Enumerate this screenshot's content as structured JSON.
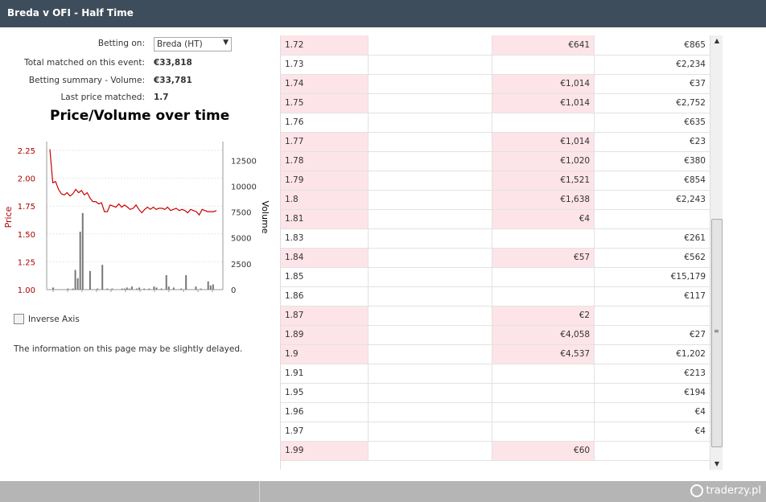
{
  "window": {
    "title": "Breda v OFI - Half Time"
  },
  "info": {
    "betting_on_label": "Betting on:",
    "betting_on_value": "Breda (HT)",
    "total_matched_label": "Total matched on this event:",
    "total_matched_value": "€33,818",
    "summary_label": "Betting summary - Volume:",
    "summary_value": "€33,781",
    "last_price_label": "Last price matched:",
    "last_price_value": "1.7"
  },
  "chart_title": "Price/Volume over time",
  "chart_data": {
    "type": "line",
    "title": "Price/Volume over time",
    "ylabel": "Price",
    "y2label": "Volume",
    "ylim": [
      1.0,
      2.3
    ],
    "y2lim": [
      0,
      14000
    ],
    "yticks": [
      "2.25",
      "2.00",
      "1.75",
      "1.50",
      "1.25",
      "1.00"
    ],
    "y2ticks": [
      "12500",
      "10000",
      "7500",
      "5000",
      "2500",
      "0"
    ],
    "price_series": {
      "name": "Price",
      "color": "#cc0000",
      "values": [
        2.26,
        1.96,
        1.97,
        1.9,
        1.86,
        1.85,
        1.87,
        1.84,
        1.86,
        1.9,
        1.87,
        1.89,
        1.85,
        1.87,
        1.82,
        1.79,
        1.79,
        1.77,
        1.78,
        1.7,
        1.7,
        1.76,
        1.75,
        1.74,
        1.77,
        1.74,
        1.76,
        1.74,
        1.72,
        1.73,
        1.76,
        1.72,
        1.69,
        1.72,
        1.74,
        1.72,
        1.74,
        1.72,
        1.73,
        1.73,
        1.72,
        1.74,
        1.71,
        1.72,
        1.73,
        1.71,
        1.72,
        1.71,
        1.69,
        1.72,
        1.71,
        1.7,
        1.67,
        1.72,
        1.71,
        1.7,
        1.7,
        1.7,
        1.71
      ]
    },
    "volume_series": {
      "name": "Volume",
      "color": "#777777",
      "values": [
        0,
        200,
        0,
        0,
        0,
        0,
        0,
        100,
        0,
        100,
        1900,
        1100,
        5600,
        7400,
        0,
        0,
        1800,
        0,
        0,
        100,
        0,
        2400,
        0,
        100,
        0,
        100,
        0,
        0,
        0,
        100,
        100,
        200,
        100,
        300,
        0,
        100,
        200,
        0,
        100,
        0,
        100,
        0,
        300,
        200,
        0,
        100,
        0,
        1400,
        300,
        0,
        200,
        0,
        0,
        100,
        0,
        1400,
        0,
        0,
        0,
        300,
        0,
        100,
        0,
        0,
        800,
        400,
        500,
        0,
        0
      ]
    }
  },
  "inverse_axis_label": "Inverse Axis",
  "note": "The information on this page may be slightly delayed.",
  "ladder": [
    {
      "price": "1.72",
      "back": "€641",
      "total": "€865",
      "pink": true
    },
    {
      "price": "1.73",
      "back": "",
      "total": "€2,234",
      "pink": false
    },
    {
      "price": "1.74",
      "back": "€1,014",
      "total": "€37",
      "pink": true
    },
    {
      "price": "1.75",
      "back": "€1,014",
      "total": "€2,752",
      "pink": true
    },
    {
      "price": "1.76",
      "back": "",
      "total": "€635",
      "pink": false
    },
    {
      "price": "1.77",
      "back": "€1,014",
      "total": "€23",
      "pink": true
    },
    {
      "price": "1.78",
      "back": "€1,020",
      "total": "€380",
      "pink": true
    },
    {
      "price": "1.79",
      "back": "€1,521",
      "total": "€854",
      "pink": true
    },
    {
      "price": "1.8",
      "back": "€1,638",
      "total": "€2,243",
      "pink": true
    },
    {
      "price": "1.81",
      "back": "€4",
      "total": "",
      "pink": true
    },
    {
      "price": "1.83",
      "back": "",
      "total": "€261",
      "pink": false
    },
    {
      "price": "1.84",
      "back": "€57",
      "total": "€562",
      "pink": true
    },
    {
      "price": "1.85",
      "back": "",
      "total": "€15,179",
      "pink": false
    },
    {
      "price": "1.86",
      "back": "",
      "total": "€117",
      "pink": false
    },
    {
      "price": "1.87",
      "back": "€2",
      "total": "",
      "pink": true
    },
    {
      "price": "1.89",
      "back": "€4,058",
      "total": "€27",
      "pink": true
    },
    {
      "price": "1.9",
      "back": "€4,537",
      "total": "€1,202",
      "pink": true
    },
    {
      "price": "1.91",
      "back": "",
      "total": "€213",
      "pink": false
    },
    {
      "price": "1.95",
      "back": "",
      "total": "€194",
      "pink": false
    },
    {
      "price": "1.96",
      "back": "",
      "total": "€4",
      "pink": false
    },
    {
      "price": "1.97",
      "back": "",
      "total": "€4",
      "pink": false
    },
    {
      "price": "1.99",
      "back": "€60",
      "total": "",
      "pink": true
    }
  ],
  "footer": {
    "logo_text": "traderzy.pl"
  }
}
